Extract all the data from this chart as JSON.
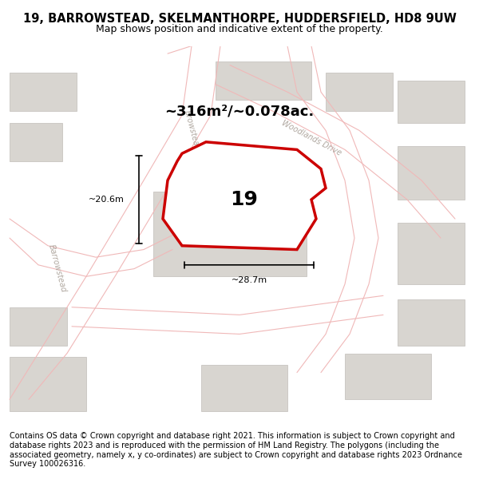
{
  "title_line1": "19, BARROWSTEAD, SKELMANTHORPE, HUDDERSFIELD, HD8 9UW",
  "title_line2": "Map shows position and indicative extent of the property.",
  "area_text": "~316m²/~0.078ac.",
  "label_19": "19",
  "dim_width": "~28.7m",
  "dim_height": "~20.6m",
  "footer_text": "Contains OS data © Crown copyright and database right 2021. This information is subject to Crown copyright and database rights 2023 and is reproduced with the permission of HM Land Registry. The polygons (including the associated geometry, namely x, y co-ordinates) are subject to Crown copyright and database rights 2023 Ordnance Survey 100026316.",
  "bg_color": "#f5f4f2",
  "map_bg": "#f0eeeb",
  "building_color": "#d8d5d0",
  "road_line_color": "#f0b8b8",
  "plot_outline_color": "#cc0000",
  "plot_fill_color": "#ffffff",
  "street_text_color": "#b0a8a0",
  "dim_line_color": "#000000",
  "title_bg": "#ffffff",
  "footer_bg": "#ffffff"
}
